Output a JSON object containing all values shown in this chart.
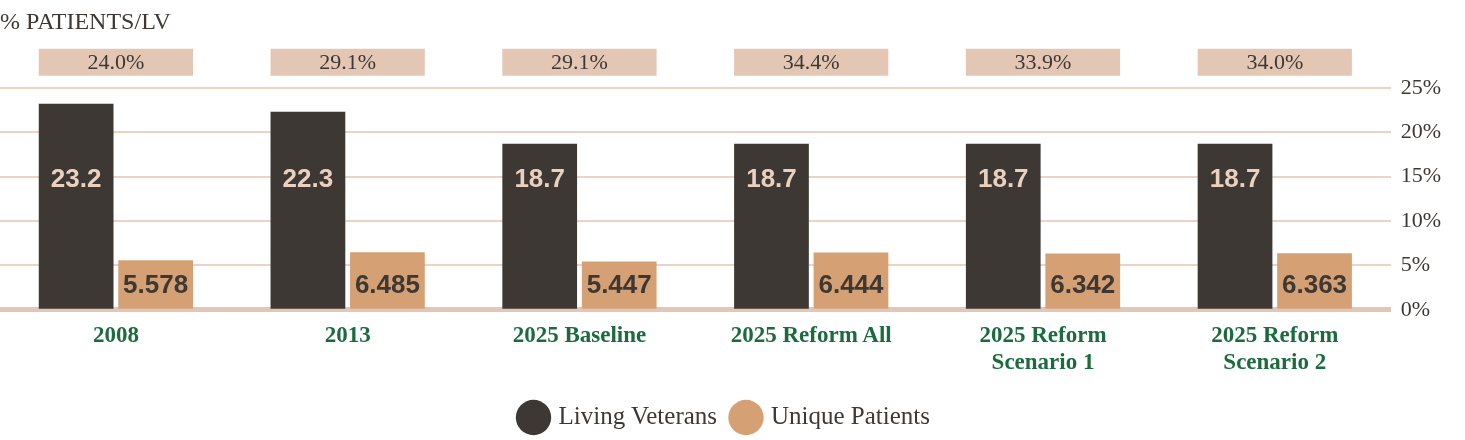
{
  "chart_data": {
    "type": "bar",
    "title": "% PATIENTS/LV",
    "categories": [
      "2008",
      "2013",
      "2025 Baseline",
      "2025 Reform All",
      "2025 Reform Scenario 1",
      "2025 Reform Scenario 2"
    ],
    "series": [
      {
        "name": "Living Veterans",
        "color": "#3d3833",
        "values": [
          23.2,
          22.3,
          18.7,
          18.7,
          18.7,
          18.7
        ]
      },
      {
        "name": "Unique Patients",
        "color": "#d4a074",
        "values": [
          5.578,
          6.485,
          5.447,
          6.444,
          6.342,
          6.363
        ]
      }
    ],
    "ylim": [
      0,
      25
    ],
    "yticks": [
      {
        "value": 0,
        "label": "0%"
      },
      {
        "value": 5,
        "label": "5%"
      },
      {
        "value": 10,
        "label": "10%"
      },
      {
        "value": 15,
        "label": "15%"
      },
      {
        "value": 20,
        "label": "20%"
      },
      {
        "value": 25,
        "label": "25%"
      }
    ],
    "grid": "y",
    "legend": "bottom",
    "data_labels": true,
    "annotations": [
      "24.0%",
      "29.1%",
      "29.1%",
      "34.4%",
      "33.9%",
      "34.0%"
    ]
  }
}
